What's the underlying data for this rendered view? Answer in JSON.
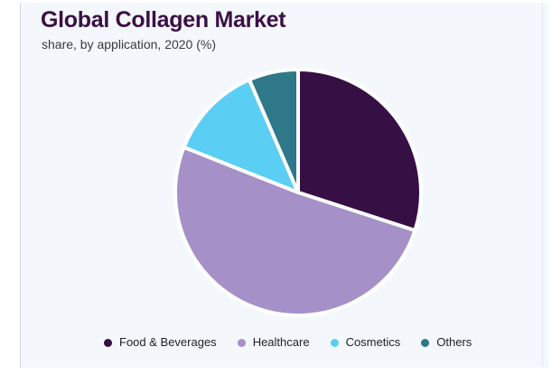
{
  "chart_data": {
    "type": "pie",
    "title": "Global Collagen Market",
    "subtitle": "share, by application, 2020 (%)",
    "unit": "%",
    "slices": [
      {
        "key": "food",
        "label": "Food & Beverages",
        "value": 30,
        "color": "#360f44"
      },
      {
        "key": "healthcare",
        "label": "Healthcare",
        "value": 51,
        "color": "#a591c8"
      },
      {
        "key": "cosmetics",
        "label": "Cosmetics",
        "value": 12.5,
        "color": "#5bcef3"
      },
      {
        "key": "others",
        "label": "Others",
        "value": 6.5,
        "color": "#2e7889"
      }
    ],
    "start_angle_deg": 0,
    "direction": "clockwise",
    "legend_position": "bottom"
  },
  "colors": {
    "background": "#f4f8fc",
    "title": "#3b0f45",
    "slice_separator": "#ffffff"
  }
}
